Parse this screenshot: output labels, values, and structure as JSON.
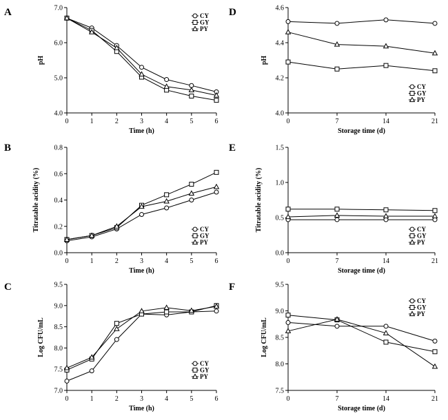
{
  "chart_data": [
    {
      "panel": "A",
      "type": "line",
      "xlabel": "Time (h)",
      "ylabel": "pH",
      "x": [
        0,
        1,
        2,
        3,
        4,
        5,
        6
      ],
      "xticks": [
        0,
        1,
        2,
        3,
        4,
        5,
        6
      ],
      "xlim": [
        0,
        6
      ],
      "ylim": [
        4.0,
        7.0
      ],
      "yticks": [
        "4.0",
        "5.0",
        "6.0",
        "7.0"
      ],
      "legend_position": "top-right",
      "series": [
        {
          "name": "CY",
          "marker": "circle",
          "values": [
            6.7,
            6.42,
            5.92,
            5.3,
            4.95,
            4.78,
            4.6
          ]
        },
        {
          "name": "GY",
          "marker": "square",
          "values": [
            6.7,
            6.35,
            5.75,
            5.02,
            4.65,
            4.48,
            4.36
          ]
        },
        {
          "name": "PY",
          "marker": "triangle",
          "values": [
            6.7,
            6.3,
            5.85,
            5.1,
            4.75,
            4.65,
            4.5
          ]
        }
      ]
    },
    {
      "panel": "B",
      "type": "line",
      "xlabel": "Time (h)",
      "ylabel": "Titratable acidity (%)",
      "x": [
        0,
        1,
        2,
        3,
        4,
        5,
        6
      ],
      "xticks": [
        0,
        1,
        2,
        3,
        4,
        5,
        6
      ],
      "xlim": [
        0,
        6
      ],
      "ylim": [
        0.0,
        0.8
      ],
      "yticks": [
        "0.0",
        "0.2",
        "0.4",
        "0.6",
        "0.8"
      ],
      "legend_position": "bottom-right",
      "series": [
        {
          "name": "CY",
          "marker": "circle",
          "values": [
            0.09,
            0.12,
            0.18,
            0.29,
            0.34,
            0.4,
            0.46
          ]
        },
        {
          "name": "GY",
          "marker": "square",
          "values": [
            0.1,
            0.13,
            0.19,
            0.36,
            0.44,
            0.52,
            0.61
          ]
        },
        {
          "name": "PY",
          "marker": "triangle",
          "values": [
            0.1,
            0.13,
            0.2,
            0.35,
            0.39,
            0.45,
            0.5
          ]
        }
      ]
    },
    {
      "panel": "C",
      "type": "line",
      "xlabel": "Time (h)",
      "ylabel": "Log CFU/mL",
      "x": [
        0,
        1,
        2,
        3,
        4,
        5,
        6
      ],
      "xticks": [
        0,
        1,
        2,
        3,
        4,
        5,
        6
      ],
      "xlim": [
        0,
        6
      ],
      "ylim": [
        7.0,
        9.5
      ],
      "yticks": [
        "7.0",
        "7.5",
        "8.0",
        "8.5",
        "9.0",
        "9.5"
      ],
      "legend_position": "bottom-right",
      "series": [
        {
          "name": "CY",
          "marker": "circle",
          "values": [
            7.22,
            7.46,
            8.2,
            8.8,
            8.78,
            8.85,
            8.87
          ]
        },
        {
          "name": "GY",
          "marker": "square",
          "values": [
            7.48,
            7.74,
            8.58,
            8.8,
            8.85,
            8.85,
            9.0
          ]
        },
        {
          "name": "PY",
          "marker": "triangle",
          "values": [
            7.53,
            7.78,
            8.45,
            8.87,
            8.95,
            8.88,
            8.98
          ]
        }
      ]
    },
    {
      "panel": "D",
      "type": "line",
      "xlabel": "Storage time (d)",
      "ylabel": "pH",
      "x": [
        0,
        7,
        14,
        21
      ],
      "xticks": [
        0,
        7,
        14,
        21
      ],
      "xlim": [
        0,
        21
      ],
      "ylim": [
        4.0,
        4.6
      ],
      "yticks": [
        "4.0",
        "4.2",
        "4.4",
        "4.6"
      ],
      "legend_position": "bottom-right",
      "series": [
        {
          "name": "CY",
          "marker": "circle",
          "values": [
            4.52,
            4.51,
            4.53,
            4.51
          ]
        },
        {
          "name": "GY",
          "marker": "square",
          "values": [
            4.29,
            4.25,
            4.27,
            4.24
          ]
        },
        {
          "name": "PY",
          "marker": "triangle",
          "values": [
            4.46,
            4.39,
            4.38,
            4.34
          ]
        }
      ]
    },
    {
      "panel": "E",
      "type": "line",
      "xlabel": "Storage time (d)",
      "ylabel": "Titratable acidity (%)",
      "x": [
        0,
        7,
        14,
        21
      ],
      "xticks": [
        0,
        7,
        14,
        21
      ],
      "xlim": [
        0,
        21
      ],
      "ylim": [
        0.0,
        1.5
      ],
      "yticks": [
        "0.0",
        "0.5",
        "1.0",
        "1.5"
      ],
      "legend_position": "bottom-right",
      "series": [
        {
          "name": "CY",
          "marker": "circle",
          "values": [
            0.47,
            0.47,
            0.47,
            0.47
          ]
        },
        {
          "name": "GY",
          "marker": "square",
          "values": [
            0.62,
            0.62,
            0.61,
            0.6
          ]
        },
        {
          "name": "PY",
          "marker": "triangle",
          "values": [
            0.51,
            0.53,
            0.52,
            0.52
          ]
        }
      ]
    },
    {
      "panel": "F",
      "type": "line",
      "xlabel": "Storage time (d)",
      "ylabel": "Log CFU/mL",
      "x": [
        0,
        7,
        14,
        21
      ],
      "xticks": [
        0,
        7,
        14,
        21
      ],
      "xlim": [
        0,
        21
      ],
      "ylim": [
        7.5,
        9.5
      ],
      "yticks": [
        "7.5",
        "8.0",
        "8.5",
        "9.0",
        "9.5"
      ],
      "legend_position": "top-right",
      "series": [
        {
          "name": "CY",
          "marker": "circle",
          "values": [
            8.78,
            8.71,
            8.71,
            8.43
          ]
        },
        {
          "name": "GY",
          "marker": "square",
          "values": [
            8.92,
            8.83,
            8.41,
            8.23
          ]
        },
        {
          "name": "PY",
          "marker": "triangle",
          "values": [
            8.62,
            8.84,
            8.58,
            7.95
          ]
        }
      ]
    }
  ]
}
